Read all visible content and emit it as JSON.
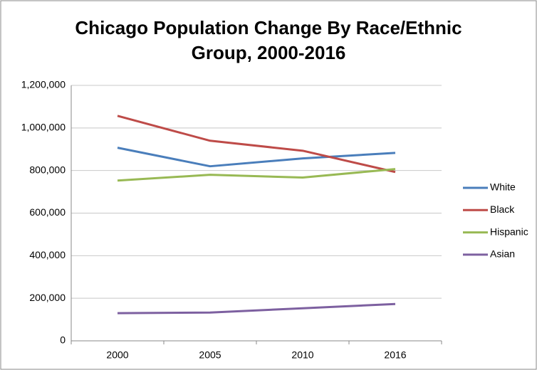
{
  "chart_data": {
    "type": "line",
    "title": "Chicago Population Change By Race/Ethnic Group, 2000-2016",
    "categories": [
      "2000",
      "2005",
      "2010",
      "2016"
    ],
    "series": [
      {
        "name": "White",
        "color": "#4a7ebb",
        "values": [
          907000,
          820000,
          857000,
          883000
        ]
      },
      {
        "name": "Black",
        "color": "#be4b48",
        "values": [
          1057000,
          940000,
          893000,
          793000
        ]
      },
      {
        "name": "Hispanic",
        "color": "#98b954",
        "values": [
          753000,
          780000,
          767000,
          807000
        ]
      },
      {
        "name": "Asian",
        "color": "#7d60a0",
        "values": [
          130000,
          133000,
          153000,
          173000
        ]
      }
    ],
    "ylim": [
      0,
      1200000
    ],
    "yticks": [
      0,
      {
        "value": 200000,
        "label": "200,000"
      },
      {
        "value": 400000,
        "label": "400,000"
      },
      {
        "value": 600000,
        "label": "600,000"
      },
      {
        "value": 800000,
        "label": "800,000"
      },
      {
        "value": 1000000,
        "label": "1,000,000"
      },
      {
        "value": 1200000,
        "label": "1,200,000"
      }
    ],
    "grid": true,
    "legend": "right"
  }
}
